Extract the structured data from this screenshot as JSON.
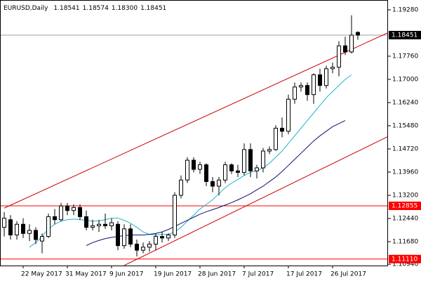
{
  "chart_data": {
    "type": "candlestick",
    "title": "EURUSD,Daily",
    "quote_labels": [
      "1.18541",
      "1.18574",
      "1.18300",
      "1.18451"
    ],
    "categories": [
      null,
      null,
      null,
      "22 May 2017",
      null,
      null,
      null,
      null,
      null,
      null,
      "31 May 2017",
      null,
      null,
      null,
      null,
      null,
      null,
      "9 Jun 2017",
      null,
      null,
      null,
      null,
      null,
      null,
      "19 Jun 2017",
      null,
      null,
      null,
      null,
      null,
      null,
      "28 Jun 2017",
      null,
      null,
      null,
      null,
      null,
      null,
      "7 Jul 2017",
      null,
      null,
      null,
      null,
      null,
      null,
      "17 Jul 2017",
      null,
      null,
      null,
      null,
      null,
      null,
      "26 Jul 2017",
      null,
      null,
      null,
      null
    ],
    "open": [
      1.1215,
      1.124,
      1.119,
      1.1225,
      1.1195,
      1.1205,
      1.117,
      1.1185,
      1.125,
      1.124,
      1.1285,
      1.127,
      1.128,
      1.125,
      1.1215,
      1.122,
      1.1225,
      1.122,
      1.1225,
      1.1155,
      1.121,
      1.116,
      1.114,
      1.115,
      1.116,
      1.1185,
      1.118,
      1.119,
      1.132,
      1.137,
      1.1435,
      1.1405,
      1.142,
      1.1365,
      1.135,
      1.137,
      1.142,
      1.14,
      1.1395,
      1.147,
      1.14,
      1.141,
      1.1465,
      1.147,
      1.154,
      1.153,
      1.1635,
      1.1675,
      1.168,
      1.165,
      1.1715,
      1.168,
      1.1735,
      1.174,
      1.181,
      1.179,
      1.18541
    ],
    "high": [
      1.1265,
      1.1255,
      1.1235,
      1.1245,
      1.1225,
      1.1215,
      1.1195,
      1.126,
      1.1275,
      1.1295,
      1.1295,
      1.129,
      1.129,
      1.127,
      1.124,
      1.124,
      1.126,
      1.1245,
      1.1235,
      1.1225,
      1.1225,
      1.1175,
      1.1165,
      1.117,
      1.1195,
      1.12,
      1.1195,
      1.133,
      1.1385,
      1.1445,
      1.1445,
      1.143,
      1.1425,
      1.138,
      1.138,
      1.143,
      1.1425,
      1.142,
      1.149,
      1.149,
      1.142,
      1.1475,
      1.148,
      1.155,
      1.1575,
      1.165,
      1.169,
      1.169,
      1.169,
      1.172,
      1.1735,
      1.1745,
      1.1755,
      1.1825,
      1.184,
      1.191,
      1.18574
    ],
    "low": [
      1.1185,
      1.1175,
      1.1175,
      1.118,
      1.117,
      1.116,
      1.113,
      1.118,
      1.1225,
      1.1235,
      1.1255,
      1.1255,
      1.124,
      1.1205,
      1.1205,
      1.12,
      1.121,
      1.1205,
      1.114,
      1.1145,
      1.115,
      1.112,
      1.113,
      1.1135,
      1.114,
      1.1165,
      1.117,
      1.118,
      1.131,
      1.136,
      1.1395,
      1.139,
      1.135,
      1.133,
      1.132,
      1.136,
      1.139,
      1.138,
      1.1385,
      1.138,
      1.1375,
      1.1395,
      1.1455,
      1.1465,
      1.151,
      1.152,
      1.162,
      1.166,
      1.163,
      1.162,
      1.166,
      1.167,
      1.172,
      1.171,
      1.178,
      1.1785,
      1.183
    ],
    "close": [
      1.1245,
      1.119,
      1.1225,
      1.1195,
      1.1205,
      1.1175,
      1.1185,
      1.125,
      1.124,
      1.1285,
      1.127,
      1.128,
      1.125,
      1.1215,
      1.122,
      1.1225,
      1.122,
      1.123,
      1.1155,
      1.121,
      1.116,
      1.114,
      1.115,
      1.116,
      1.1185,
      1.118,
      1.119,
      1.132,
      1.137,
      1.1435,
      1.1405,
      1.142,
      1.1365,
      1.135,
      1.137,
      1.142,
      1.14,
      1.1395,
      1.147,
      1.14,
      1.141,
      1.1465,
      1.147,
      1.154,
      1.153,
      1.1635,
      1.1675,
      1.168,
      1.165,
      1.1715,
      1.168,
      1.1735,
      1.174,
      1.181,
      1.179,
      1.1845,
      1.18451
    ],
    "ma": [
      {
        "color": "#20b2c8",
        "values": [
          null,
          null,
          null,
          null,
          1.115,
          1.1165,
          1.1185,
          1.121,
          1.1225,
          1.1235,
          1.124,
          1.1242,
          1.124,
          1.1238,
          1.1235,
          1.1236,
          1.124,
          1.1245,
          1.1245,
          1.1238,
          1.1228,
          1.1215,
          1.12,
          1.1192,
          1.119,
          1.1192,
          1.1192,
          1.12,
          1.1215,
          1.1235,
          1.1255,
          1.1275,
          1.129,
          1.1305,
          1.1325,
          1.1345,
          1.136,
          1.1372,
          1.1385,
          1.1395,
          1.14,
          1.141,
          1.1425,
          1.1445,
          1.1465,
          1.149,
          1.1515,
          1.154,
          1.1565,
          1.159,
          1.1615,
          1.164,
          1.166,
          1.168,
          1.17,
          1.1715,
          null
        ]
      },
      {
        "color": "#10106e",
        "values": [
          null,
          null,
          null,
          null,
          null,
          null,
          null,
          null,
          null,
          null,
          null,
          null,
          null,
          1.1155,
          1.1165,
          1.1172,
          1.1178,
          1.1182,
          1.1185,
          1.1188,
          1.119,
          1.119,
          1.119,
          1.1192,
          1.1195,
          1.12,
          1.1208,
          1.1218,
          1.1228,
          1.1238,
          1.1248,
          1.1258,
          1.1266,
          1.1273,
          1.128,
          1.1288,
          1.1296,
          1.1305,
          1.1315,
          1.1325,
          1.1338,
          1.135,
          1.1365,
          1.138,
          1.1398,
          1.1418,
          1.1438,
          1.1458,
          1.1478,
          1.1498,
          1.1515,
          1.153,
          1.1545,
          1.1555,
          1.1565,
          null,
          null
        ]
      }
    ],
    "trendlines": [
      {
        "color": "#cc0000",
        "start": {
          "index": 0,
          "price": 1.1278
        },
        "end": {
          "index": 61,
          "price": 1.1855
        }
      },
      {
        "color": "#cc0000",
        "start": {
          "index": 19,
          "price": 1.109
        },
        "end": {
          "index": 61,
          "price": 1.1515
        }
      }
    ],
    "levels": [
      {
        "value": 1.18451,
        "label": "1.18451",
        "color": "#000000",
        "line_color": "#a0a0a0"
      },
      {
        "value": 1.12855,
        "label": "1.12855",
        "color": "#ff0000",
        "line_color": "#ff0000"
      },
      {
        "value": 1.1111,
        "label": "1.11110",
        "color": "#ff0000",
        "line_color": "#ff0000"
      }
    ],
    "ylim": [
      1.10897,
      1.19602
    ],
    "yticks": [
      {
        "value": 1.1928,
        "label": "1.19280"
      },
      {
        "value": 1.1776,
        "label": "1.17760"
      },
      {
        "value": 1.17,
        "label": "1.17000"
      },
      {
        "value": 1.1624,
        "label": "1.16240"
      },
      {
        "value": 1.1548,
        "label": "1.15480"
      },
      {
        "value": 1.1472,
        "label": "1.14720"
      },
      {
        "value": 1.1396,
        "label": "1.13960"
      },
      {
        "value": 1.132,
        "label": "1.13200"
      },
      {
        "value": 1.1244,
        "label": "1.12440"
      },
      {
        "value": 1.1168,
        "label": "1.11680"
      },
      {
        "value": 1.1094,
        "label": "1.10940"
      }
    ]
  }
}
